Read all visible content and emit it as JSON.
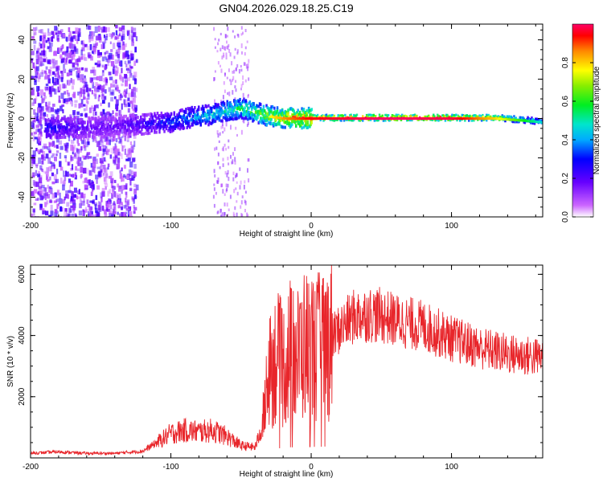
{
  "chart_data": [
    {
      "type": "heatmap",
      "title": "GN04.2026.029.18.25.C19",
      "xlabel": "Height of straight line (km)",
      "ylabel": "Frequency (Hz)",
      "xlim": [
        -200,
        165
      ],
      "ylim": [
        -50,
        48
      ],
      "xticks": [
        -200,
        -100,
        0,
        100
      ],
      "yticks": [
        -40,
        -20,
        0,
        20,
        40
      ],
      "xtick_labels": [
        "-200",
        "-100",
        "0",
        "100"
      ],
      "ytick_labels": [
        "-40",
        "-20",
        "0",
        "20",
        "40"
      ],
      "colorbar": {
        "label": "Normalized spectral amplitude",
        "range": [
          0,
          1
        ],
        "ticks": [
          0.0,
          0.2,
          0.4,
          0.6,
          0.8
        ],
        "tick_labels": [
          "0.0",
          "0.2",
          "0.4",
          "0.6",
          "0.8"
        ]
      },
      "ridge": {
        "description": "frequency track vs height",
        "x": [
          -185,
          -160,
          -140,
          -120,
          -100,
          -90,
          -80,
          -70,
          -60,
          -50,
          -40,
          -30,
          -20,
          0,
          50,
          100,
          130,
          150,
          165
        ],
        "y": [
          -5,
          -5,
          -4,
          -3,
          -2,
          0,
          1,
          2,
          4,
          5,
          3,
          1,
          0,
          0,
          0,
          0,
          0,
          -1,
          -2
        ],
        "amplitude": [
          0.3,
          0.2,
          0.2,
          0.25,
          0.35,
          0.4,
          0.45,
          0.5,
          0.55,
          0.6,
          0.65,
          0.75,
          0.85,
          0.95,
          1.0,
          0.98,
          0.8,
          0.6,
          0.45
        ]
      }
    },
    {
      "type": "line",
      "xlabel": "Height of straight line (km)",
      "ylabel": "SNR (10 * v/v)",
      "xlim": [
        -200,
        165
      ],
      "ylim": [
        0,
        6300
      ],
      "xticks": [
        -200,
        -100,
        0,
        100
      ],
      "yticks": [
        2000,
        4000,
        6000
      ],
      "xtick_labels": [
        "-200",
        "-100",
        "0",
        "100"
      ],
      "ytick_labels": [
        "2000",
        "4000",
        "6000"
      ],
      "series": [
        {
          "name": "SNR",
          "color": "#e8262b",
          "x": [
            -200,
            -180,
            -160,
            -140,
            -120,
            -110,
            -100,
            -90,
            -80,
            -70,
            -60,
            -50,
            -40,
            -35,
            -30,
            -25,
            -20,
            -15,
            -10,
            -5,
            0,
            5,
            10,
            20,
            30,
            40,
            50,
            60,
            70,
            80,
            100,
            120,
            140,
            160,
            165
          ],
          "y": [
            150,
            200,
            150,
            150,
            220,
            500,
            800,
            900,
            850,
            900,
            700,
            400,
            350,
            1000,
            2800,
            3300,
            3000,
            3500,
            3300,
            3700,
            3600,
            3600,
            3700,
            4200,
            4600,
            4700,
            4650,
            4500,
            4400,
            4300,
            3900,
            3600,
            3400,
            3300,
            3300
          ]
        }
      ]
    }
  ]
}
